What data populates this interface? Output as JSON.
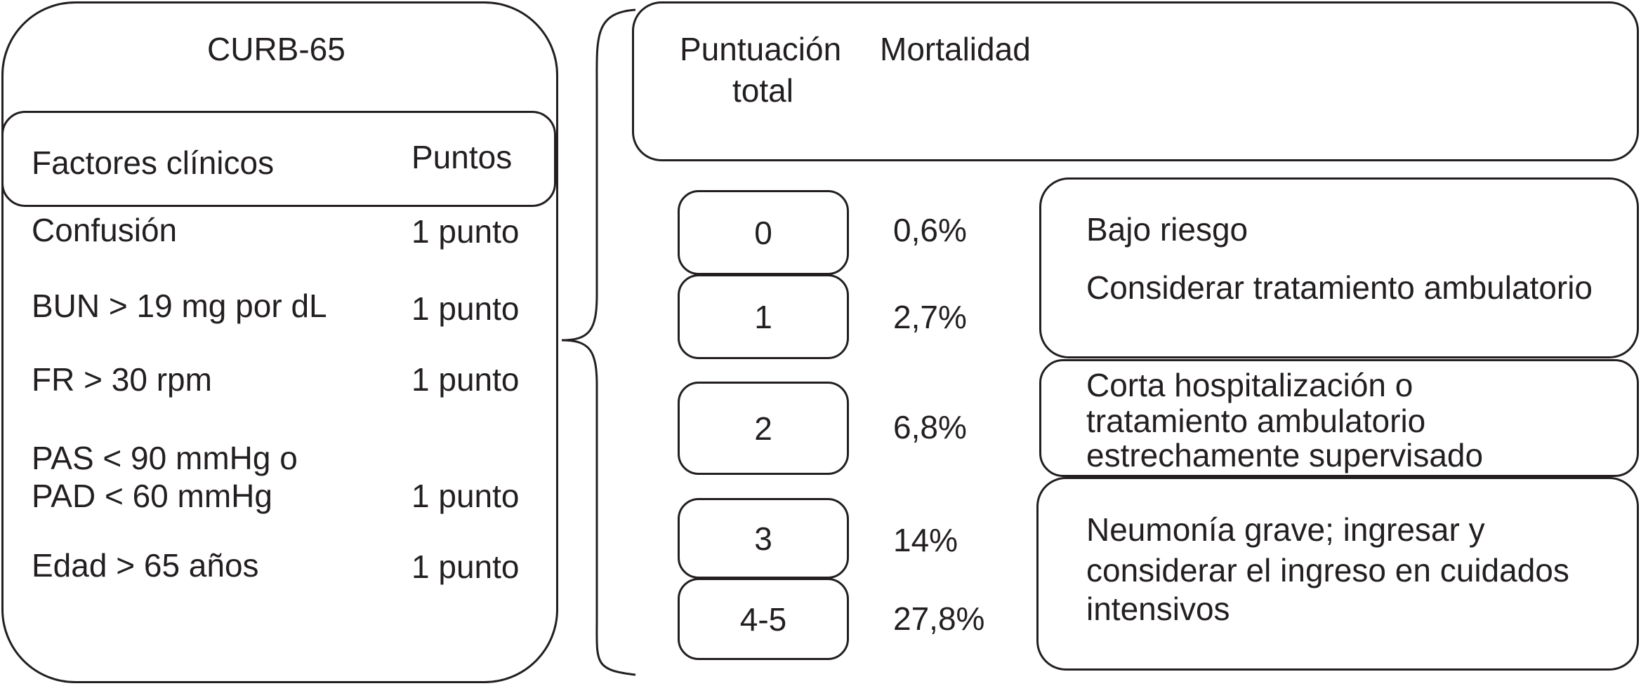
{
  "left_panel": {
    "title": "CURB-65",
    "header_factor": "Factores clínicos",
    "header_points": "Puntos",
    "rows": [
      {
        "factor": "Confusión",
        "points": "1 punto"
      },
      {
        "factor": "BUN > 19 mg por dL",
        "points": "1 punto"
      },
      {
        "factor": "FR > 30 rpm",
        "points": "1 punto"
      },
      {
        "factor_line1": "PAS < 90 mmHg o",
        "factor_line2": "PAD < 60 mmHg",
        "points": "1 punto"
      },
      {
        "factor": "Edad > 65 años",
        "points": "1 punto"
      }
    ]
  },
  "right_panel": {
    "header_score_line1": "Puntuación",
    "header_score_line2": "total",
    "header_mortality": "Mortalidad",
    "scores": [
      {
        "score": "0",
        "mortality": "0,6%"
      },
      {
        "score": "1",
        "mortality": "2,7%"
      },
      {
        "score": "2",
        "mortality": "6,8%"
      },
      {
        "score": "3",
        "mortality": "14%"
      },
      {
        "score": "4-5",
        "mortality": "27,8%"
      }
    ],
    "recommendations": [
      {
        "line1": "Bajo riesgo",
        "line2": "Considerar tratamiento ambulatorio"
      },
      {
        "line1": "Corta hospitalización o",
        "line2": "tratamiento ambulatorio",
        "line3": "estrechamente supervisado"
      },
      {
        "line1": "Neumonía grave; ingresar y",
        "line2": "considerar el ingreso en cuidados",
        "line3": "intensivos"
      }
    ]
  }
}
